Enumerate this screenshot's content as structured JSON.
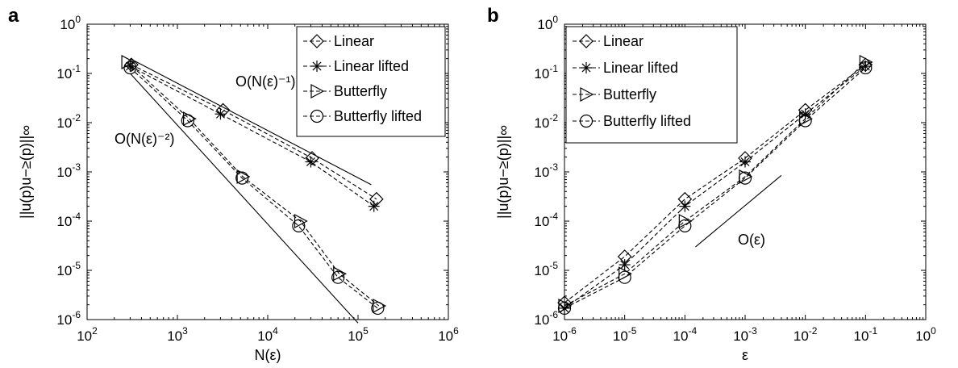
{
  "colors": {
    "line": "#000000",
    "background": "#ffffff"
  },
  "chart_data": [
    {
      "panel_label": "a",
      "type": "line",
      "x_scale": "log",
      "y_scale": "log",
      "xlabel": "N(ε)",
      "ylabel": "||u(p)u−≥(p)||∞",
      "xlim": [
        100,
        1000000
      ],
      "ylim": [
        1e-06,
        1
      ],
      "x_ticks": [
        {
          "base": "10",
          "exp": "2"
        },
        {
          "base": "10",
          "exp": "3"
        },
        {
          "base": "10",
          "exp": "4"
        },
        {
          "base": "10",
          "exp": "5"
        },
        {
          "base": "10",
          "exp": "6"
        }
      ],
      "y_ticks": [
        {
          "base": "10",
          "exp": "-6"
        },
        {
          "base": "10",
          "exp": "-5"
        },
        {
          "base": "10",
          "exp": "-4"
        },
        {
          "base": "10",
          "exp": "-3"
        },
        {
          "base": "10",
          "exp": "-2"
        },
        {
          "base": "10",
          "exp": "-1"
        },
        {
          "base": "10",
          "exp": "0"
        }
      ],
      "grid": false,
      "legend_position": "top-right",
      "series": [
        {
          "name": "Linear",
          "marker": "diamond",
          "line": "dashed",
          "x": [
            310,
            3200,
            31000,
            160000
          ],
          "y": [
            0.15,
            0.018,
            0.0019,
            0.00028
          ]
        },
        {
          "name": "Linear lifted",
          "marker": "asterisk",
          "line": "dashed",
          "x": [
            300,
            3000,
            30000,
            150000
          ],
          "y": [
            0.14,
            0.015,
            0.0016,
            0.0002
          ]
        },
        {
          "name": "Butterfly",
          "marker": "triangle-right",
          "line": "dashed",
          "x": [
            280,
            1350,
            5300,
            23000,
            62000,
            170000
          ],
          "y": [
            0.17,
            0.012,
            0.0008,
            0.0001,
            8.5e-06,
            1.9e-06
          ]
        },
        {
          "name": "Butterfly lifted",
          "marker": "circle",
          "line": "dashed",
          "x": [
            300,
            1300,
            5200,
            22000,
            60000,
            165000
          ],
          "y": [
            0.13,
            0.011,
            0.00075,
            8e-05,
            7.2e-06,
            1.7e-06
          ]
        }
      ],
      "reference_lines": [
        {
          "label": "O(N(ε)⁻¹)",
          "x": [
            300,
            140000
          ],
          "y": [
            0.2,
            0.00055
          ]
        },
        {
          "label": "O(N(ε)⁻²)",
          "x": [
            300,
            100000
          ],
          "y": [
            0.1,
            8.5e-07
          ]
        }
      ]
    },
    {
      "panel_label": "b",
      "type": "line",
      "x_scale": "log",
      "y_scale": "log",
      "xlabel": "ε",
      "ylabel": "||u(p)u−≥(p)||∞",
      "xlim": [
        1e-06,
        1
      ],
      "ylim": [
        1e-06,
        1
      ],
      "x_ticks": [
        {
          "base": "10",
          "exp": "-6"
        },
        {
          "base": "10",
          "exp": "-5"
        },
        {
          "base": "10",
          "exp": "-4"
        },
        {
          "base": "10",
          "exp": "-3"
        },
        {
          "base": "10",
          "exp": "-2"
        },
        {
          "base": "10",
          "exp": "-1"
        },
        {
          "base": "10",
          "exp": "0"
        }
      ],
      "y_ticks": [
        {
          "base": "10",
          "exp": "-6"
        },
        {
          "base": "10",
          "exp": "-5"
        },
        {
          "base": "10",
          "exp": "-4"
        },
        {
          "base": "10",
          "exp": "-3"
        },
        {
          "base": "10",
          "exp": "-2"
        },
        {
          "base": "10",
          "exp": "-1"
        },
        {
          "base": "10",
          "exp": "0"
        }
      ],
      "grid": false,
      "legend_position": "top-left",
      "series": [
        {
          "name": "Linear",
          "marker": "diamond",
          "line": "dashed",
          "x": [
            1e-06,
            1e-05,
            0.0001,
            0.001,
            0.01,
            0.1
          ],
          "y": [
            2.2e-06,
            1.9e-05,
            0.00028,
            0.0019,
            0.018,
            0.15
          ]
        },
        {
          "name": "Linear lifted",
          "marker": "asterisk",
          "line": "dashed",
          "x": [
            1e-06,
            1e-05,
            0.0001,
            0.001,
            0.01,
            0.1
          ],
          "y": [
            1.7e-06,
            1.3e-05,
            0.0002,
            0.0016,
            0.015,
            0.14
          ]
        },
        {
          "name": "Butterfly",
          "marker": "triangle-right",
          "line": "dashed",
          "x": [
            1e-06,
            1e-05,
            0.0001,
            0.001,
            0.01,
            0.1
          ],
          "y": [
            1.9e-06,
            8.5e-06,
            0.0001,
            0.0008,
            0.012,
            0.17
          ]
        },
        {
          "name": "Butterfly lifted",
          "marker": "circle",
          "line": "dashed",
          "x": [
            1e-06,
            1e-05,
            0.0001,
            0.001,
            0.01,
            0.1
          ],
          "y": [
            1.7e-06,
            7.2e-06,
            8e-05,
            0.00075,
            0.011,
            0.13
          ]
        }
      ],
      "reference_lines": [
        {
          "label": "O(ε)",
          "x": [
            0.00015,
            0.004
          ],
          "y": [
            3e-05,
            0.00085
          ]
        }
      ]
    }
  ]
}
